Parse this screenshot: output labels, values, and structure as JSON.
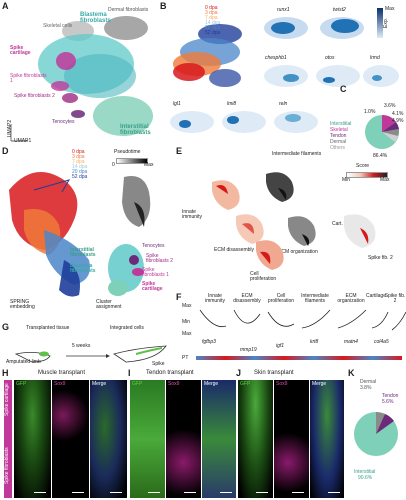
{
  "panels": {
    "A": {
      "letter": "A",
      "labels": {
        "dermal": "Dermal fibroblasts",
        "skeletal": "Skeletal cells",
        "blastema": "Blastema fibroblasts",
        "spike_cart": "Spike cartilage",
        "spike_fib1": "Spike fibroblasts 1",
        "spike_fib2": "Spike fibroblasts 2",
        "tenocytes": "Tenocytes",
        "interstitial": "Interstitial fibroblasts"
      },
      "axis_x": "UMAP1",
      "axis_y": "UMAP2",
      "colors": {
        "dermal": "#8a8a8a",
        "skeletal": "#b0b0b0",
        "blastema": "#5fc9c9",
        "spike": "#c0399a",
        "tenocytes": "#6b2a7a",
        "interstitial": "#7fd0b8"
      }
    },
    "B": {
      "letter": "B",
      "timepoints": [
        "0 dpa",
        "3 dpa",
        "7 dpa",
        "14 dpa",
        "20 dpa",
        "52 dpa"
      ],
      "timepoint_colors": [
        "#d7191c",
        "#f07a3a",
        "#fdae61",
        "#9ecae1",
        "#4a86c8",
        "#1f3e9a"
      ],
      "genes": [
        "runx1",
        "twist2",
        "chesphb1",
        "otos",
        "lrmd",
        "lgl1",
        "lmi8",
        "reln"
      ],
      "scale_max": "Max",
      "scale_label": "Exp."
    },
    "C": {
      "letter": "C",
      "categories": [
        "Interstitial",
        "Skeletal",
        "Tendon",
        "Dermal",
        "Others"
      ],
      "category_colors": [
        "#7fd0b8",
        "#c0399a",
        "#6b2a7a",
        "#8a8a8a",
        "#d0d0d0"
      ],
      "percents": [
        "86.4%",
        "1.0%",
        "3.6%",
        "4.1%",
        "4.9%"
      ]
    },
    "D": {
      "letter": "D",
      "timepoints": [
        "0 dpa",
        "3 dpa",
        "7 dpa",
        "14 dpa",
        "20 dpa",
        "52 dpa"
      ],
      "pseudotime": "Pseudotime",
      "pt_min": "0",
      "pt_max": "Max",
      "labels": {
        "interstitial": "Interstitial fibroblasts",
        "blastema": "Blastema fibroblasts",
        "tenocytes": "Tenocytes",
        "spike_fib2": "Spike fibroblasts 2",
        "spike_fib1": "Spike fibroblasts 1",
        "spike_cart": "Spike cartilage"
      },
      "caption_spring": "SPRING embedding",
      "caption_cluster": "Cluster assignment"
    },
    "E": {
      "letter": "E",
      "labels": [
        "Intermediate filaments",
        "Innate immunity",
        "ECM disassembly",
        "ECM organization",
        "Cell proliferation",
        "Cart.",
        "Spike fib. 2"
      ],
      "score_title": "Score",
      "score_min": "Min",
      "score_max": "Max"
    },
    "F": {
      "letter": "F",
      "columns": [
        "Innate immunity",
        "ECM disassembly",
        "Cell proliferation",
        "Intermediate filaments",
        "ECM organization",
        "Cartilage",
        "Spike fib. 2"
      ],
      "genes": [
        "fgfbp3",
        "mmp19",
        "igf1",
        "krt8",
        "matn4",
        "col4a5"
      ],
      "y_max": "Max",
      "y_min": "Min",
      "pt_label": "PT"
    },
    "G": {
      "letter": "G",
      "transplanted": "Transplanted tissue",
      "integrated": "Integrated cells",
      "interval": "5 weeks",
      "amputated": "Amputated limb",
      "spike": "Spike"
    },
    "H": {
      "letter": "H",
      "title": "Muscle transplant"
    },
    "I": {
      "letter": "I",
      "title": "Tendon transplant"
    },
    "J": {
      "letter": "J",
      "title": "Skin transplant"
    },
    "HIJ": {
      "channels": [
        "GFP",
        "Sox9",
        "Merge"
      ],
      "row_labels": [
        "Spike cartilage",
        "Spike fibroblasts"
      ]
    },
    "K": {
      "letter": "K",
      "categories": [
        "Dermal",
        "Tendon",
        "Interstitial"
      ],
      "percents": [
        "3.8%",
        "5.6%",
        "90.6%"
      ],
      "category_colors": [
        "#8a8a8a",
        "#6b2a7a",
        "#7fd0b8"
      ]
    }
  }
}
